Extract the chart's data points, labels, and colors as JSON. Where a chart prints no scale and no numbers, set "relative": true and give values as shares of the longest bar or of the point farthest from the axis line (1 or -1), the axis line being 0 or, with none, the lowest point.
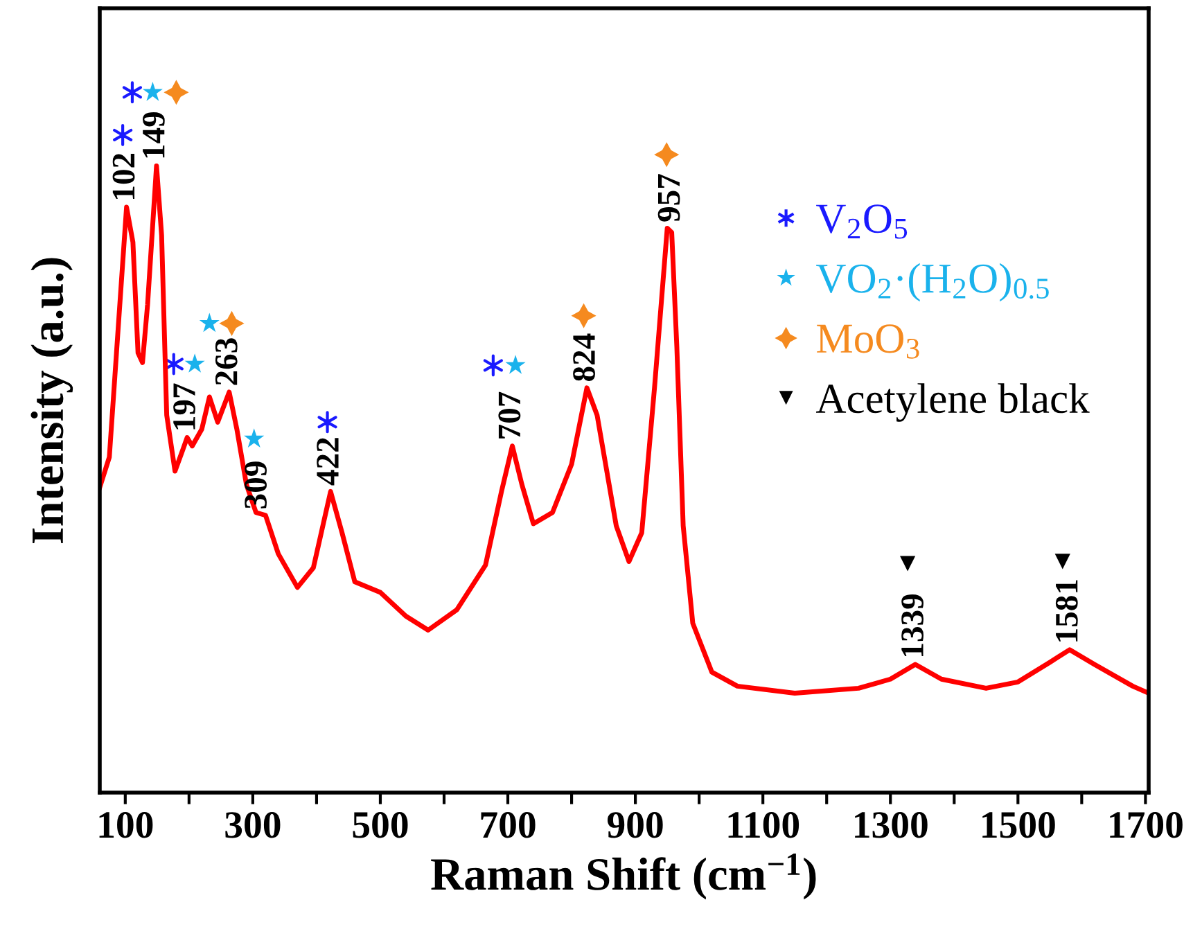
{
  "chart_data": {
    "type": "line",
    "relative": true,
    "xlabel": "Raman Shift (cm$^{−1}$)",
    "ylabel": "Intensity (a.u.)",
    "xlim": [
      60,
      1705
    ],
    "xticks": [
      100,
      {
        "value": 200,
        "label": null
      },
      300,
      {
        "value": 400,
        "label": null
      },
      500,
      {
        "value": 600,
        "label": null
      },
      700,
      {
        "value": 800,
        "label": null
      },
      900,
      {
        "value": 1000,
        "label": null
      },
      1100,
      {
        "value": 1200,
        "label": null
      },
      1300,
      {
        "value": 1400,
        "label": null
      },
      1500,
      {
        "value": 1600,
        "label": null
      },
      1700
    ],
    "tick_labels": "x",
    "grid": false,
    "legend": "top right",
    "series": [
      {
        "color": "#ff0000",
        "marker": "none",
        "x": [
          60,
          75,
          90,
          102,
          112,
          120,
          127,
          135,
          149,
          157,
          165,
          178,
          190,
          197,
          205,
          220,
          232,
          245,
          263,
          275,
          290,
          305,
          320,
          340,
          370,
          395,
          422,
          440,
          460,
          500,
          540,
          575,
          620,
          665,
          690,
          707,
          722,
          740,
          770,
          800,
          824,
          840,
          870,
          890,
          910,
          930,
          950,
          957,
          965,
          975,
          990,
          1020,
          1060,
          1150,
          1250,
          1300,
          1339,
          1380,
          1450,
          1500,
          1550,
          1581,
          1620,
          1680,
          1705
        ],
        "values": [
          0.436,
          0.479,
          0.678,
          0.836,
          0.786,
          0.628,
          0.614,
          0.697,
          0.895,
          0.796,
          0.539,
          0.459,
          0.489,
          0.507,
          0.495,
          0.519,
          0.565,
          0.529,
          0.572,
          0.519,
          0.44,
          0.4,
          0.396,
          0.341,
          0.293,
          0.321,
          0.43,
          0.371,
          0.301,
          0.286,
          0.252,
          0.232,
          0.261,
          0.325,
          0.43,
          0.495,
          0.44,
          0.384,
          0.4,
          0.469,
          0.578,
          0.539,
          0.381,
          0.33,
          0.371,
          0.578,
          0.806,
          0.8,
          0.637,
          0.381,
          0.242,
          0.172,
          0.152,
          0.142,
          0.149,
          0.162,
          0.183,
          0.162,
          0.149,
          0.158,
          0.186,
          0.204,
          0.183,
          0.152,
          0.142
        ]
      },
      {
        "type": "scatter",
        "name": "V$_{2}$O$_{5}$",
        "color": "#1a1aff",
        "marker": "cross",
        "x": [
          96,
          111,
          176,
          417,
          677
        ],
        "values": [
          0.939,
          1.0,
          0.612,
          0.529,
          0.61
        ]
      },
      {
        "type": "scatter",
        "name": "VO$_{2}$·(H$_{2}$O)$_{0.5}$",
        "color": "#1ab2ec",
        "marker": "star",
        "x": [
          143,
          209,
          232,
          302,
          712
        ],
        "values": [
          1.0,
          0.612,
          0.67,
          0.505,
          0.61
        ]
      },
      {
        "type": "scatter",
        "name": "MoO$_{3}$",
        "color": "#f58a1f",
        "marker": "diamond",
        "x": [
          180,
          267,
          819,
          949
        ],
        "values": [
          1.0,
          0.67,
          0.681,
          0.911
        ]
      },
      {
        "type": "scatter",
        "name": "Acetylene black",
        "color": "#000000",
        "marker": "triangle",
        "x": [
          1327,
          1570
        ],
        "values": [
          0.327,
          0.33
        ]
      }
    ],
    "annotations": [
      {
        "text": "102",
        "x": 102,
        "y": 0.836
      },
      {
        "text": "149",
        "x": 149,
        "y": 0.895
      },
      {
        "text": "197",
        "x": 197,
        "y": 0.507
      },
      {
        "text": "263",
        "x": 263,
        "y": 0.572
      },
      {
        "text": "309",
        "x": 309,
        "y": 0.396
      },
      {
        "text": "422",
        "x": 422,
        "y": 0.43
      },
      {
        "text": "707",
        "x": 707,
        "y": 0.495
      },
      {
        "text": "824",
        "x": 824,
        "y": 0.578
      },
      {
        "text": "957",
        "x": 957,
        "y": 0.806
      },
      {
        "text": "1339",
        "x": 1339,
        "y": 0.183
      },
      {
        "text": "1581",
        "x": 1581,
        "y": 0.204
      }
    ]
  }
}
